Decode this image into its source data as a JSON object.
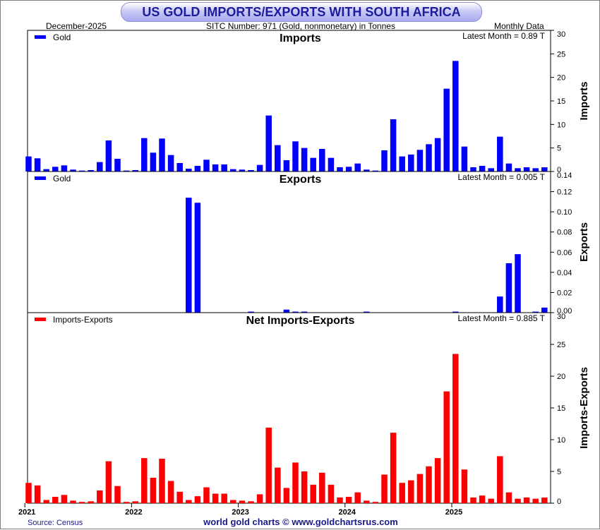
{
  "title": "US GOLD IMPORTS/EXPORTS WITH SOUTH AFRICA",
  "header": {
    "date": "December-2025",
    "sitc": "SITC Number: 971 (Gold, nonmonetary) in Tonnes",
    "frequency": "Monthly Data"
  },
  "footer": {
    "source": "Source: Census",
    "credit": "world gold charts © www.goldchartsrus.com"
  },
  "colors": {
    "imports": "#0000ff",
    "exports": "#0000ff",
    "net": "#ff0000",
    "title": "#1c1c9c"
  },
  "chart_data": [
    {
      "type": "bar",
      "title": "Imports",
      "legend": "Gold",
      "legend_position": "top-left",
      "latest": "Latest Month = 0.89 T",
      "ylabel": "Imports",
      "ylim": [
        0,
        30
      ],
      "yticks": [
        "30",
        "25",
        "20",
        "15",
        "10",
        "5",
        "0"
      ],
      "start": "2021-01",
      "values": [
        3.2,
        2.8,
        0.5,
        1.0,
        1.3,
        0.4,
        0.2,
        0.3,
        2.0,
        6.6,
        2.7,
        0.2,
        0.3,
        7.1,
        4.0,
        7.0,
        3.5,
        1.8,
        0.6,
        1.2,
        2.5,
        1.5,
        1.5,
        0.5,
        0.4,
        0.3,
        1.4,
        11.9,
        5.6,
        2.4,
        6.4,
        5.0,
        2.9,
        4.8,
        2.9,
        0.9,
        1.0,
        1.7,
        0.4,
        0.2,
        4.5,
        11.1,
        3.2,
        3.6,
        4.6,
        5.8,
        7.1,
        17.6,
        23.5,
        5.3,
        0.9,
        1.2,
        0.7,
        7.4,
        1.7,
        0.7,
        0.9,
        0.7,
        0.89
      ]
    },
    {
      "type": "bar",
      "title": "Exports",
      "legend": "Gold",
      "legend_position": "top-left",
      "latest": "Latest Month = 0.005 T",
      "ylabel": "Exports",
      "ylim": [
        0,
        0.14
      ],
      "yticks": [
        "0.14",
        "0.12",
        "0.10",
        "0.08",
        "0.06",
        "0.04",
        "0.02",
        "0.00"
      ],
      "start": "2021-01",
      "values": [
        0,
        0,
        0,
        0,
        0,
        0,
        0,
        0,
        0,
        0,
        0,
        0,
        0,
        0,
        0,
        0,
        0,
        0,
        0.114,
        0.109,
        0,
        0,
        0,
        0,
        0,
        0.001,
        0,
        0,
        0,
        0.003,
        0.001,
        0.001,
        0,
        0,
        0,
        0,
        0,
        0,
        0.001,
        0,
        0,
        0,
        0,
        0,
        0,
        0,
        0,
        0,
        0.001,
        0,
        0,
        0,
        0,
        0.016,
        0.049,
        0.058,
        0,
        0.001,
        0.005
      ]
    },
    {
      "type": "bar",
      "title": "Net Imports-Exports",
      "legend": "Imports-Exports",
      "legend_position": "top-left",
      "latest": "Latest Month = 0.885 T",
      "ylabel": "Imports-Exports",
      "ylim": [
        0,
        30
      ],
      "yticks": [
        "30",
        "25",
        "20",
        "15",
        "10",
        "5",
        "0"
      ],
      "xticks": [
        "2021",
        "2022",
        "2023",
        "2024",
        "2025"
      ],
      "start": "2021-01",
      "values": [
        3.2,
        2.8,
        0.5,
        1.0,
        1.3,
        0.4,
        0.2,
        0.3,
        2.0,
        6.6,
        2.7,
        0.2,
        0.3,
        7.1,
        4.0,
        7.0,
        3.5,
        1.8,
        0.5,
        1.1,
        2.5,
        1.5,
        1.5,
        0.5,
        0.4,
        0.3,
        1.4,
        11.9,
        5.6,
        2.4,
        6.4,
        5.0,
        2.9,
        4.8,
        2.9,
        0.9,
        1.0,
        1.7,
        0.4,
        0.2,
        4.5,
        11.1,
        3.2,
        3.6,
        4.6,
        5.8,
        7.1,
        17.6,
        23.5,
        5.3,
        0.9,
        1.2,
        0.7,
        7.4,
        1.7,
        0.7,
        0.9,
        0.7,
        0.885
      ]
    }
  ]
}
